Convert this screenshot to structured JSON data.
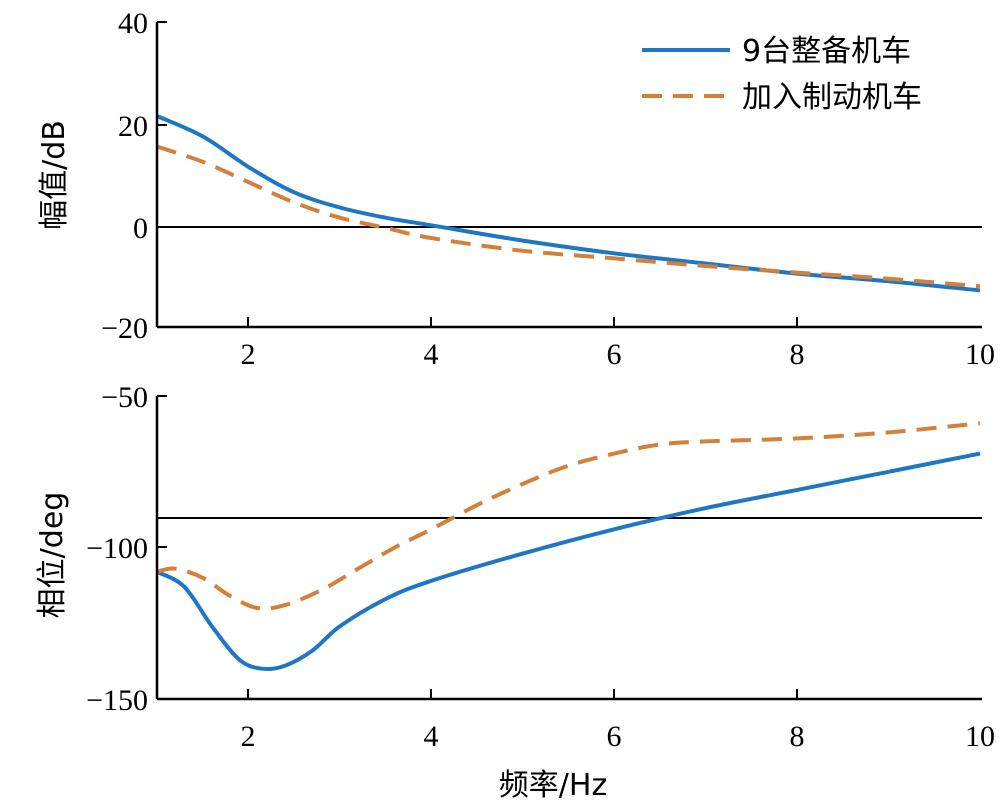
{
  "chart_data": [
    {
      "type": "line",
      "ylabel": "幅值/dB",
      "xlim": [
        1,
        10
      ],
      "ylim": [
        -20,
        40
      ],
      "x_ticks": [
        "2",
        "4",
        "6",
        "8",
        "10"
      ],
      "y_ticks": [
        "40",
        "20",
        "0",
        "−20"
      ],
      "reference_line_y": 0,
      "legend": {
        "placement": "top-right"
      },
      "series": [
        {
          "name": "9台整备机车",
          "color": "#1f77c4",
          "style": "solid",
          "x": [
            1.0,
            1.5,
            2.0,
            2.5,
            3.0,
            3.5,
            4.0,
            5.0,
            6.0,
            7.0,
            8.0,
            9.0,
            10.0
          ],
          "y": [
            21.5,
            17.5,
            11.5,
            6.5,
            3.5,
            1.5,
            0.0,
            -3.0,
            -5.5,
            -7.5,
            -9.5,
            -11.0,
            -12.8
          ]
        },
        {
          "name": "加入制动机车",
          "color": "#d2803a",
          "style": "dashed",
          "x": [
            1.0,
            1.5,
            2.0,
            2.5,
            3.0,
            3.5,
            4.0,
            5.0,
            6.0,
            7.0,
            8.0,
            9.0,
            10.0
          ],
          "y": [
            15.5,
            12.5,
            8.5,
            4.5,
            1.5,
            -0.5,
            -2.5,
            -5.0,
            -6.5,
            -8.0,
            -9.3,
            -10.5,
            -12.0
          ]
        }
      ]
    },
    {
      "type": "line",
      "xlabel": "频率/Hz",
      "ylabel": "相位/deg",
      "xlim": [
        1,
        10
      ],
      "ylim": [
        -150,
        -50
      ],
      "x_ticks": [
        "2",
        "4",
        "6",
        "8",
        "10"
      ],
      "y_ticks": [
        "−50",
        "−100",
        "−150"
      ],
      "reference_line_y": -90,
      "series": [
        {
          "name": "9台整备机车",
          "color": "#1f77c4",
          "style": "solid",
          "x": [
            1.0,
            1.3,
            1.6,
            1.9,
            2.15,
            2.4,
            2.7,
            3.0,
            3.5,
            4.0,
            5.0,
            6.0,
            7.0,
            8.0,
            9.0,
            10.0
          ],
          "y": [
            -108,
            -113,
            -126,
            -137,
            -140,
            -139,
            -134,
            -126,
            -117,
            -111,
            -102,
            -94,
            -87,
            -81,
            -75,
            -69
          ]
        },
        {
          "name": "加入制动机车",
          "color": "#d2803a",
          "style": "dashed",
          "x": [
            1.0,
            1.2,
            1.5,
            1.8,
            2.1,
            2.4,
            2.8,
            3.2,
            3.6,
            4.0,
            4.5,
            5.0,
            5.5,
            6.0,
            6.5,
            7.0,
            8.0,
            9.0,
            10.0
          ],
          "y": [
            -108,
            -107,
            -110,
            -116,
            -120,
            -119,
            -114,
            -107,
            -100,
            -94,
            -86,
            -79,
            -73,
            -69,
            -66,
            -65,
            -64,
            -62,
            -59
          ]
        }
      ]
    }
  ]
}
